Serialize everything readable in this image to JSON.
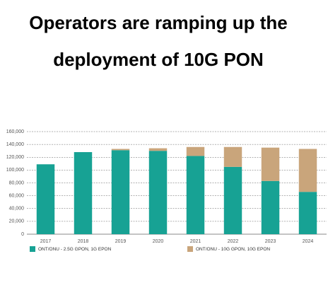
{
  "chart_data": {
    "type": "stacked-bar",
    "title": "Operators are ramping up the deployment of 10G PON",
    "categories": [
      "2017",
      "2018",
      "2019",
      "2020",
      "2021",
      "2022",
      "2023",
      "2024"
    ],
    "series": [
      {
        "name": "ONT/ONU - 2.5G GPON, 1G EPON",
        "color": "#17a294",
        "values": [
          109000,
          128000,
          131000,
          130000,
          122000,
          105000,
          83000,
          66000
        ]
      },
      {
        "name": "ONT/ONU - 10G GPON, 10G EPON",
        "color": "#c9a57b",
        "values": [
          0,
          0,
          2000,
          4000,
          14000,
          31000,
          52000,
          67000
        ]
      }
    ],
    "ylim": [
      0,
      160000
    ],
    "yticks": [
      0,
      {
        "value": 20000,
        "label": "20,000"
      },
      {
        "value": 40000,
        "label": "40,000"
      },
      {
        "value": 60000,
        "label": "60,000"
      },
      {
        "value": 80000,
        "label": "80,000"
      },
      {
        "value": 100000,
        "label": "100,000"
      },
      {
        "value": 120000,
        "label": "120,000"
      },
      {
        "value": 140000,
        "label": "140,000"
      },
      {
        "value": 160000,
        "label": "160,000"
      }
    ],
    "grid": true
  }
}
